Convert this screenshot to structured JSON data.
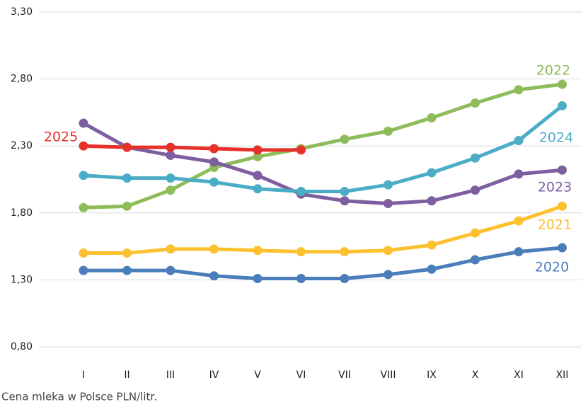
{
  "chart_data": {
    "type": "line",
    "caption": "Cena mleka w Polsce PLN/litr.",
    "categories": [
      "I",
      "II",
      "III",
      "IV",
      "V",
      "VI",
      "VII",
      "VIII",
      "IX",
      "X",
      "XI",
      "XII"
    ],
    "ylim": [
      0.8,
      3.3
    ],
    "yticks": [
      {
        "value": 0.8,
        "label": "0,80"
      },
      {
        "value": 1.3,
        "label": "1,30"
      },
      {
        "value": 1.8,
        "label": "1,80"
      },
      {
        "value": 2.3,
        "label": "2,30"
      },
      {
        "value": 2.8,
        "label": "2,80"
      },
      {
        "value": 3.3,
        "label": "3,30"
      }
    ],
    "grid": true,
    "series": [
      {
        "name": "2020",
        "color": "#4a7ebb",
        "values": [
          1.37,
          1.37,
          1.37,
          1.33,
          1.31,
          1.31,
          1.31,
          1.34,
          1.38,
          1.45,
          1.51,
          1.54
        ]
      },
      {
        "name": "2021",
        "color": "#fdc02f",
        "values": [
          1.5,
          1.5,
          1.53,
          1.53,
          1.52,
          1.51,
          1.51,
          1.52,
          1.56,
          1.65,
          1.74,
          1.85
        ]
      },
      {
        "name": "2022",
        "color": "#8fbc5a",
        "values": [
          1.84,
          1.85,
          1.97,
          2.14,
          2.22,
          2.28,
          2.35,
          2.41,
          2.51,
          2.62,
          2.72,
          2.76
        ]
      },
      {
        "name": "2023",
        "color": "#7d5fa0",
        "values": [
          2.47,
          2.29,
          2.23,
          2.18,
          2.08,
          1.94,
          1.89,
          1.87,
          1.89,
          1.97,
          2.09,
          2.12
        ]
      },
      {
        "name": "2024",
        "color": "#4bacc6",
        "values": [
          2.08,
          2.06,
          2.06,
          2.03,
          1.98,
          1.96,
          1.96,
          2.01,
          2.1,
          2.21,
          2.34,
          2.6
        ]
      },
      {
        "name": "2025",
        "color": "#e8302a",
        "values": [
          2.3,
          2.29,
          2.29,
          2.28,
          2.27,
          2.27,
          null,
          null,
          null,
          null,
          null,
          null
        ]
      }
    ]
  }
}
